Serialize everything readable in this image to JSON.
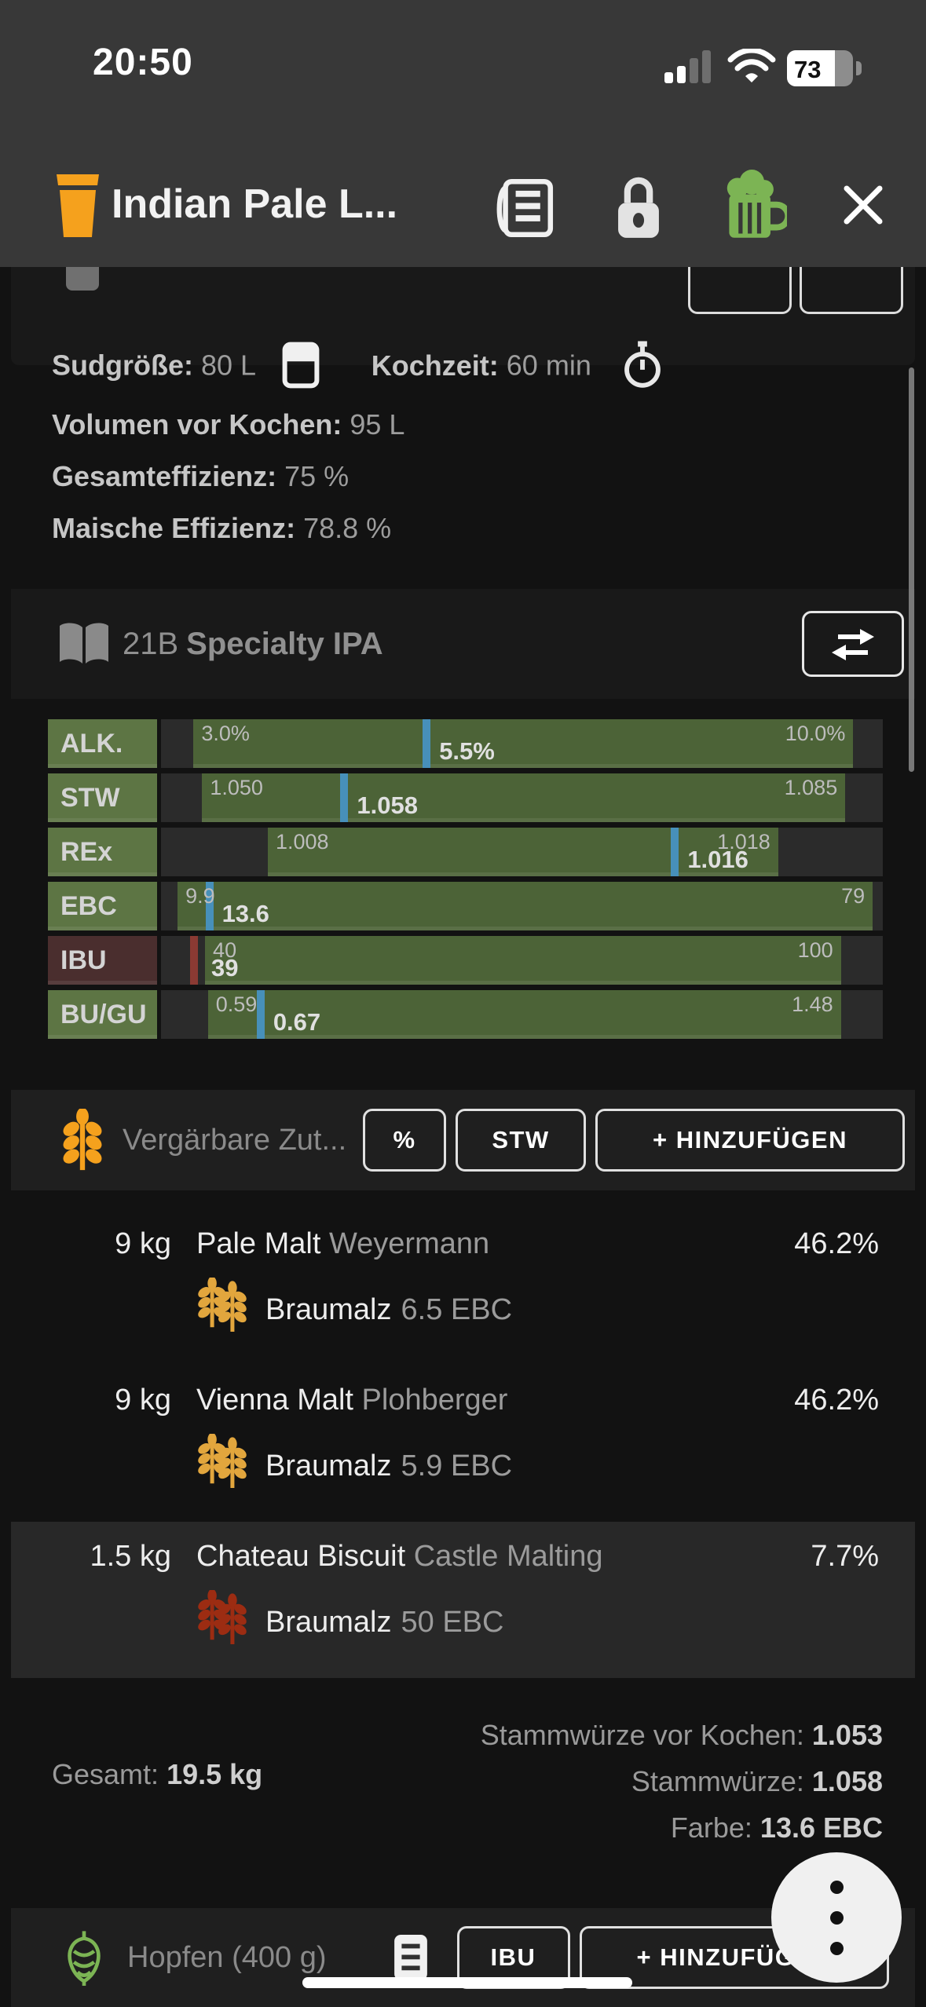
{
  "statusbar": {
    "time": "20:50",
    "battery": "73"
  },
  "header": {
    "title": "Indian Pale L..."
  },
  "info": {
    "batch_label": "Sudgröße:",
    "batch_value": "80 L",
    "boil_label": "Kochzeit:",
    "boil_value": "60 min",
    "lines": [
      {
        "label": "Volumen vor Kochen:",
        "value": "95 L"
      },
      {
        "label": "Gesamteffizienz:",
        "value": "75 %"
      },
      {
        "label": "Maische Effizienz:",
        "value": "78.8 %"
      }
    ]
  },
  "style": {
    "code": "21B",
    "name": "Specialty IPA"
  },
  "stats": [
    {
      "key": "alk",
      "label": "ALK.",
      "min": "3.0%",
      "max": "10.0%",
      "value": "5.5%",
      "range": [
        4.5,
        95.9
      ],
      "marker": 36.8,
      "marker_color": "blue",
      "variant": "green"
    },
    {
      "key": "stw",
      "label": "STW",
      "min": "1.050",
      "max": "1.085",
      "value": "1.058",
      "range": [
        5.7,
        94.8
      ],
      "marker": 25.4,
      "marker_color": "blue",
      "variant": "green"
    },
    {
      "key": "rex",
      "label": "REx",
      "min": "1.008",
      "max": "1.018",
      "value": "1.016",
      "range": [
        14.8,
        85.5
      ],
      "marker": 71.2,
      "marker_color": "blue",
      "variant": "green"
    },
    {
      "key": "ebc",
      "label": "EBC",
      "min": "9.9",
      "max": "79",
      "value": "13.6",
      "range": [
        2.3,
        98.6
      ],
      "marker": 6.7,
      "marker_color": "blue",
      "variant": "green"
    },
    {
      "key": "ibu",
      "label": "IBU",
      "min": "40",
      "max": "100",
      "value": "39",
      "range": [
        6.1,
        94.2
      ],
      "marker": 4.6,
      "marker_color": "red",
      "variant": "red",
      "value_at_range_start": true
    },
    {
      "key": "bugu",
      "label": "BU/GU",
      "min": "0.59",
      "max": "1.48",
      "value": "0.67",
      "range": [
        6.5,
        94.2
      ],
      "marker": 13.8,
      "marker_color": "blue",
      "variant": "green"
    }
  ],
  "fermentables": {
    "title": "Vergärbare Zut...",
    "btn_percent": "%",
    "btn_stw": "STW",
    "btn_add": "+ HINZUFÜGEN",
    "items": [
      {
        "amount": "9 kg",
        "name": "Pale Malt",
        "supplier": "Weyermann",
        "percent": "46.2%",
        "type": "Braumalz",
        "ebc": "6.5 EBC",
        "grain": "gold",
        "highlight": false
      },
      {
        "amount": "9 kg",
        "name": "Vienna Malt",
        "supplier": "Plohberger",
        "percent": "46.2%",
        "type": "Braumalz",
        "ebc": "5.9 EBC",
        "grain": "gold",
        "highlight": false
      },
      {
        "amount": "1.5 kg",
        "name": "Chateau Biscuit",
        "supplier": "Castle Malting",
        "percent": "7.7%",
        "type": "Braumalz",
        "ebc": "50 EBC",
        "grain": "roast",
        "highlight": true
      }
    ],
    "summary": {
      "pre_boil_label": "Stammwürze vor Kochen:",
      "pre_boil_value": "1.053",
      "total_label": "Gesamt:",
      "total_value": "19.5 kg",
      "og_label": "Stammwürze:",
      "og_value": "1.058",
      "color_label": "Farbe:",
      "color_value": "13.6 EBC"
    }
  },
  "hops": {
    "title": "Hopfen (400 g)",
    "btn_ibu": "IBU",
    "btn_add": "+ HINZUFÜGEN"
  },
  "colors": {
    "range_green": "#4c6337",
    "key_green": "#5d7544",
    "key_red": "#4a2e2e",
    "marker_blue": "#4790ba",
    "marker_red": "#8b3a33",
    "orange": "#f5a11d",
    "grain_gold": "#e2a63d",
    "grain_roast": "#9c2c12",
    "hop_green": "#7cb454"
  }
}
